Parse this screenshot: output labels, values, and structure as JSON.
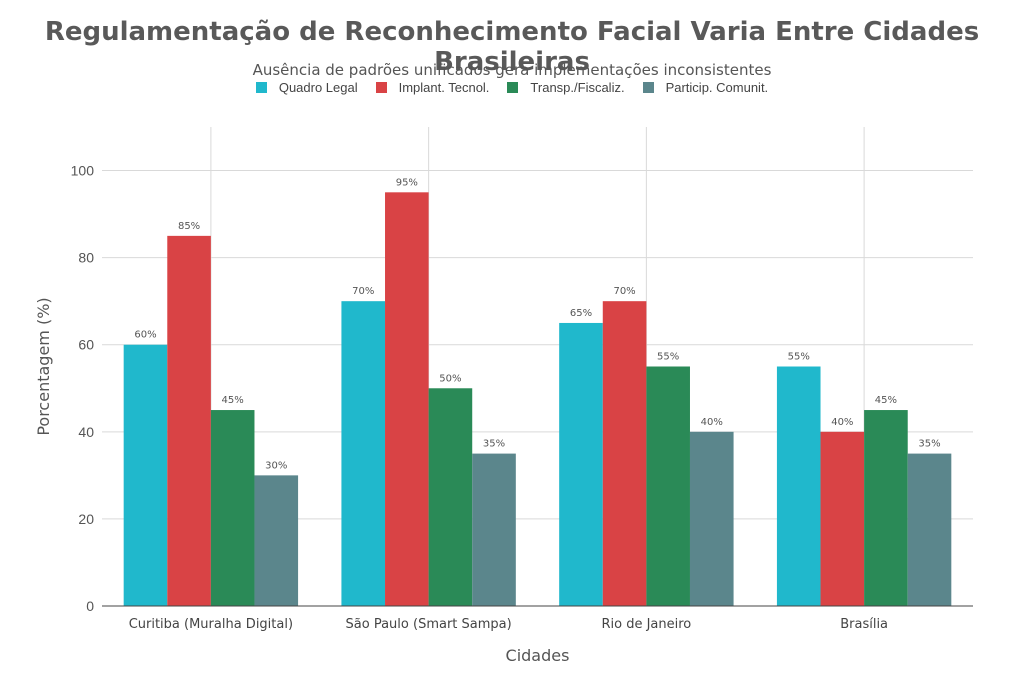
{
  "chart_data": {
    "type": "bar",
    "title": "Regulamentação de Reconhecimento Facial Varia Entre Cidades Brasileiras",
    "subtitle": "Ausência de padrões unificados gera implementações inconsistentes",
    "xlabel": "Cidades",
    "ylabel": "Porcentagem (%)",
    "ylim": [
      0,
      110
    ],
    "yticks": [
      0,
      20,
      40,
      60,
      80,
      100
    ],
    "grid": true,
    "legend_position": "top-center",
    "categories": [
      "Curitiba (Muralha Digital)",
      "São Paulo (Smart Sampa)",
      "Rio de Janeiro",
      "Brasília"
    ],
    "series": [
      {
        "name": "Quadro Legal",
        "color": "#20b8cc",
        "values": [
          60,
          70,
          65,
          55
        ]
      },
      {
        "name": "Implant. Tecnol.",
        "color": "#d94345",
        "values": [
          85,
          95,
          70,
          40
        ]
      },
      {
        "name": "Transp./Fiscaliz.",
        "color": "#2a8a57",
        "values": [
          45,
          50,
          55,
          45
        ]
      },
      {
        "name": "Particip. Comunit.",
        "color": "#5b868c",
        "values": [
          30,
          35,
          40,
          35
        ]
      }
    ],
    "value_suffix": "%"
  }
}
